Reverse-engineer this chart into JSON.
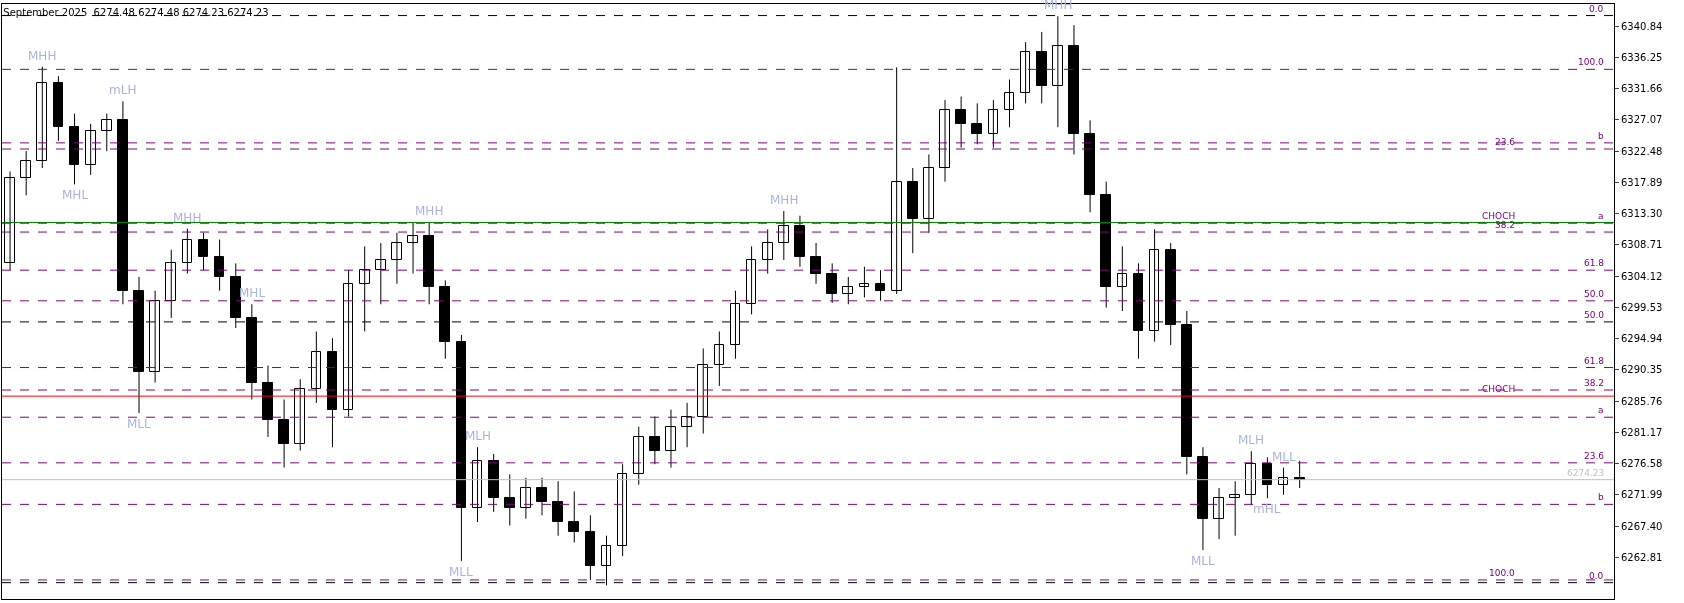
{
  "chart_data": {
    "type": "candlestick",
    "title": "September 2025  6274.48 6274.48 6274.23 6274.23",
    "categories": [
      null,
      null,
      null,
      null,
      null,
      null,
      null,
      null,
      null,
      null,
      null,
      null,
      null,
      null,
      null,
      null,
      null,
      null,
      null,
      null,
      null,
      null,
      null,
      null,
      null,
      null,
      null,
      null,
      null,
      null,
      null,
      null,
      null,
      null,
      null,
      null,
      null,
      null,
      null,
      null,
      null,
      null,
      null,
      null,
      null,
      null,
      null,
      null,
      null,
      null,
      null,
      null,
      null,
      null,
      null,
      null,
      null,
      null,
      null,
      null,
      null,
      null,
      null,
      null,
      null,
      null,
      null,
      null,
      null,
      null,
      null,
      null,
      null,
      null,
      null,
      null,
      null,
      null,
      null,
      null,
      null,
      null,
      null,
      null,
      null,
      null,
      null,
      null,
      null,
      null,
      null,
      null,
      null,
      null,
      null,
      null,
      null,
      null,
      null,
      null
    ],
    "color": "#000000",
    "ohlc": [
      [
        6306.0,
        6319.5,
        6305.0,
        6318.5
      ],
      [
        6318.5,
        6322.5,
        6316.0,
        6321.0
      ],
      [
        6321.0,
        6334.9,
        6320.0,
        6332.5
      ],
      [
        6332.5,
        6333.5,
        6324.0,
        6326.0
      ],
      [
        6326.0,
        6328.0,
        6317.6,
        6320.5
      ],
      [
        6320.5,
        6326.5,
        6319.0,
        6325.5
      ],
      [
        6325.5,
        6328.0,
        6322.5,
        6327.0
      ],
      [
        6327.0,
        6329.8,
        6300.0,
        6302.0
      ],
      [
        6302.0,
        6304.0,
        6284.0,
        6290.0
      ],
      [
        6290.0,
        6302.0,
        6288.5,
        6300.5
      ],
      [
        6300.5,
        6308.0,
        6298.0,
        6306.0
      ],
      [
        6306.0,
        6311.1,
        6304.5,
        6309.5
      ],
      [
        6309.5,
        6310.5,
        6305.0,
        6307.0
      ],
      [
        6307.0,
        6309.5,
        6302.0,
        6304.0
      ],
      [
        6304.0,
        6306.0,
        6296.5,
        6298.0
      ],
      [
        6298.0,
        6300.0,
        6286.0,
        6288.5
      ],
      [
        6288.5,
        6291.0,
        6280.5,
        6283.0
      ],
      [
        6283.0,
        6286.0,
        6276.0,
        6279.5
      ],
      [
        6279.5,
        6289.0,
        6278.5,
        6287.5
      ],
      [
        6287.5,
        6296.0,
        6285.5,
        6293.0
      ],
      [
        6293.0,
        6295.0,
        6279.0,
        6284.5
      ],
      [
        6284.5,
        6305.0,
        6283.5,
        6303.0
      ],
      [
        6303.0,
        6308.5,
        6296.0,
        6305.0
      ],
      [
        6305.0,
        6309.0,
        6300.0,
        6306.5
      ],
      [
        6306.5,
        6310.5,
        6303.0,
        6309.0
      ],
      [
        6309.0,
        6312.0,
        6304.5,
        6310.0
      ],
      [
        6310.0,
        6312.1,
        6300.0,
        6302.5
      ],
      [
        6302.5,
        6303.5,
        6292.0,
        6294.5
      ],
      [
        6294.5,
        6295.5,
        6262.3,
        6270.0
      ],
      [
        6270.0,
        6279.0,
        6268.0,
        6277.0
      ],
      [
        6277.0,
        6278.0,
        6269.5,
        6271.5
      ],
      [
        6271.5,
        6275.0,
        6267.5,
        6270.0
      ],
      [
        6270.0,
        6274.5,
        6268.5,
        6273.0
      ],
      [
        6273.0,
        6274.5,
        6269.0,
        6271.0
      ],
      [
        6271.0,
        6274.0,
        6266.0,
        6268.0
      ],
      [
        6268.0,
        6272.5,
        6265.0,
        6266.5
      ],
      [
        6266.5,
        6269.0,
        6259.5,
        6261.5
      ],
      [
        6261.5,
        6266.0,
        6258.7,
        6264.5
      ],
      [
        6264.5,
        6276.5,
        6263.0,
        6275.0
      ],
      [
        6275.0,
        6282.0,
        6273.5,
        6280.5
      ],
      [
        6280.5,
        6283.5,
        6276.5,
        6278.5
      ],
      [
        6278.5,
        6284.5,
        6276.0,
        6282.0
      ],
      [
        6282.0,
        6285.5,
        6279.0,
        6283.5
      ],
      [
        6283.5,
        6293.5,
        6281.0,
        6291.0
      ],
      [
        6291.0,
        6296.0,
        6288.0,
        6294.0
      ],
      [
        6294.0,
        6302.0,
        6292.0,
        6300.0
      ],
      [
        6300.0,
        6308.5,
        6298.5,
        6306.5
      ],
      [
        6306.5,
        6311.0,
        6304.5,
        6309.0
      ],
      [
        6309.0,
        6313.7,
        6306.5,
        6311.5
      ],
      [
        6311.5,
        6313.0,
        6305.5,
        6307.0
      ],
      [
        6307.0,
        6309.0,
        6303.0,
        6304.5
      ],
      [
        6304.5,
        6306.0,
        6300.2,
        6301.5
      ],
      [
        6301.5,
        6304.0,
        6300.0,
        6302.5
      ],
      [
        6302.5,
        6305.5,
        6301.0,
        6303.0
      ],
      [
        6303.0,
        6305.0,
        6300.5,
        6302.0
      ],
      [
        6302.0,
        6334.8,
        6301.5,
        6318.0
      ],
      [
        6318.0,
        6320.0,
        6307.5,
        6312.5
      ],
      [
        6312.5,
        6322.0,
        6310.5,
        6320.0
      ],
      [
        6320.0,
        6330.0,
        6318.0,
        6328.5
      ],
      [
        6328.5,
        6330.5,
        6323.0,
        6326.5
      ],
      [
        6326.5,
        6329.5,
        6323.5,
        6325.0
      ],
      [
        6325.0,
        6330.0,
        6323.0,
        6328.5
      ],
      [
        6328.5,
        6333.0,
        6326.0,
        6331.0
      ],
      [
        6331.0,
        6338.5,
        6329.5,
        6337.0
      ],
      [
        6337.0,
        6340.0,
        6329.5,
        6332.0
      ],
      [
        6332.0,
        6342.3,
        6326.0,
        6338.0
      ],
      [
        6338.0,
        6341.0,
        6322.0,
        6325.0
      ],
      [
        6325.0,
        6327.0,
        6313.5,
        6316.0
      ],
      [
        6316.0,
        6318.0,
        6299.5,
        6302.5
      ],
      [
        6302.5,
        6308.5,
        6299.0,
        6304.5
      ],
      [
        6304.5,
        6306.0,
        6292.0,
        6296.0
      ],
      [
        6296.0,
        6311.0,
        6294.5,
        6308.0
      ],
      [
        6308.0,
        6309.0,
        6294.0,
        6297.0
      ],
      [
        6297.0,
        6299.0,
        6275.0,
        6277.5
      ],
      [
        6277.5,
        6279.0,
        6263.9,
        6268.5
      ],
      [
        6268.5,
        6273.0,
        6265.5,
        6271.5
      ],
      [
        6271.5,
        6274.0,
        6266.0,
        6272.0
      ],
      [
        6272.0,
        6278.4,
        6270.5,
        6276.5
      ],
      [
        6276.5,
        6277.5,
        6271.5,
        6273.5
      ],
      [
        6273.5,
        6276.0,
        6272.0,
        6274.5
      ],
      [
        6274.5,
        6277.0,
        6273.0,
        6274.23
      ],
      null,
      null,
      null,
      null,
      null,
      null,
      null,
      null,
      null,
      null,
      null,
      null,
      null,
      null,
      null,
      null,
      null,
      null,
      null
    ],
    "ylim": [
      6256.7,
      6344.1
    ],
    "yticks": [
      6262.81,
      {
        "value": 6267.4,
        "label": "6267.40"
      },
      6271.99,
      6276.58,
      6281.17,
      6285.76,
      6290.35,
      6294.94,
      6299.53,
      6304.12,
      6308.71,
      {
        "value": 6313.3,
        "label": "6313.30"
      },
      6317.89,
      6322.48,
      6327.07,
      6331.66,
      6336.25,
      6340.84
    ],
    "tick_labels": "y",
    "ref_lines": [
      {
        "axis": "y",
        "value": 6334.5,
        "color": "#800080",
        "line_style": "dashed"
      },
      {
        "axis": "y",
        "value": 6323.7,
        "color": "#800080",
        "line_style": "dashed"
      },
      {
        "axis": "y",
        "value": 6311.9,
        "color": "#800080",
        "line_style": "dashed"
      },
      {
        "axis": "y",
        "value": 6305.0,
        "color": "#800080",
        "line_style": "dashed"
      },
      {
        "axis": "y",
        "value": 6297.4,
        "color": "#000000",
        "line_style": "dashed"
      },
      {
        "axis": "y",
        "value": 6287.4,
        "color": "#800080",
        "line_style": "dashed"
      },
      {
        "axis": "y",
        "value": 6276.7,
        "color": "#800080",
        "line_style": "dashed"
      },
      {
        "axis": "y",
        "value": 6259.1,
        "color": "#000000",
        "line_style": "dashed"
      },
      {
        "axis": "y",
        "value": 6342.4,
        "color": "#000000",
        "line_style": "dashed"
      },
      {
        "axis": "y",
        "value": 6322.8,
        "color": "#800080",
        "line_style": "dashed"
      },
      {
        "axis": "y",
        "value": 6310.6,
        "color": "#800080",
        "line_style": "dashed"
      },
      {
        "axis": "y",
        "value": 6300.5,
        "color": "#800080",
        "line_style": "dashed"
      },
      {
        "axis": "y",
        "value": 6290.7,
        "color": "#800080",
        "line_style": "dashed"
      },
      {
        "axis": "y",
        "value": 6283.4,
        "color": "#800080",
        "line_style": "dashed"
      },
      {
        "axis": "y",
        "value": 6270.6,
        "color": "#800080",
        "line_style": "dashed"
      },
      {
        "axis": "y",
        "value": 6259.5,
        "color": "#800080",
        "line_style": "dashed"
      },
      {
        "axis": "y",
        "value": 6312.0,
        "color": "#008000",
        "line_style": "solid"
      },
      {
        "axis": "y",
        "value": 6286.5,
        "color": "#ff0000",
        "line_style": "solid"
      },
      {
        "axis": "y",
        "value": 6274.23,
        "label": "6274.23",
        "color": "#c0c0c0",
        "line_style": "solid"
      }
    ],
    "annotations": [
      {
        "text": "MHH",
        "y": 6334.9
      },
      {
        "text": "MHL",
        "y": 6317.6
      },
      {
        "text": "mLH",
        "y": 6329.8
      },
      {
        "text": "MLL",
        "y": 6284.0
      },
      {
        "text": "MHH",
        "y": 6311.1
      },
      {
        "text": "MLL",
        "y": 6276.0
      },
      {
        "text": "MHH",
        "y": 6312.1
      },
      {
        "text": "MLL",
        "y": 6262.3
      },
      {
        "text": "MLH",
        "y": 6279.0
      },
      {
        "text": "MHH",
        "y": 6313.7
      },
      {
        "text": "MHL",
        "y": 6300.0
      },
      {
        "text": "MHH",
        "y": 6342.3
      },
      {
        "text": "MLL",
        "y": 6263.9
      },
      {
        "text": "MLH",
        "y": 6278.4
      },
      {
        "text": "mHL",
        "y": 6271.5
      },
      {
        "text": "100.0",
        "y": 6334.5
      },
      {
        "text": "b",
        "y": 6323.7
      },
      {
        "text": "a",
        "y": 6311.9
      },
      {
        "text": "61.8",
        "y": 6305.0
      },
      {
        "text": "50.0",
        "y": 6297.4
      },
      {
        "text": "38.2",
        "y": 6287.4
      },
      {
        "text": "23.6",
        "y": 6276.7
      },
      {
        "text": "0.0",
        "y": 6259.1
      },
      {
        "text": "0.0",
        "y": 6342.4
      },
      {
        "text": "23.6",
        "y": 6322.8
      },
      {
        "text": "38.2",
        "y": 6310.6
      },
      {
        "text": "50.0",
        "y": 6300.5
      },
      {
        "text": "61.8",
        "y": 6290.7
      },
      {
        "text": "a",
        "y": 6283.4
      },
      {
        "text": "b",
        "y": 6270.6
      },
      {
        "text": "100.0",
        "y": 6259.5
      },
      {
        "text": "CHOCH",
        "y": 6312.0
      },
      {
        "text": "CHOCH",
        "y": 6286.5
      }
    ]
  }
}
